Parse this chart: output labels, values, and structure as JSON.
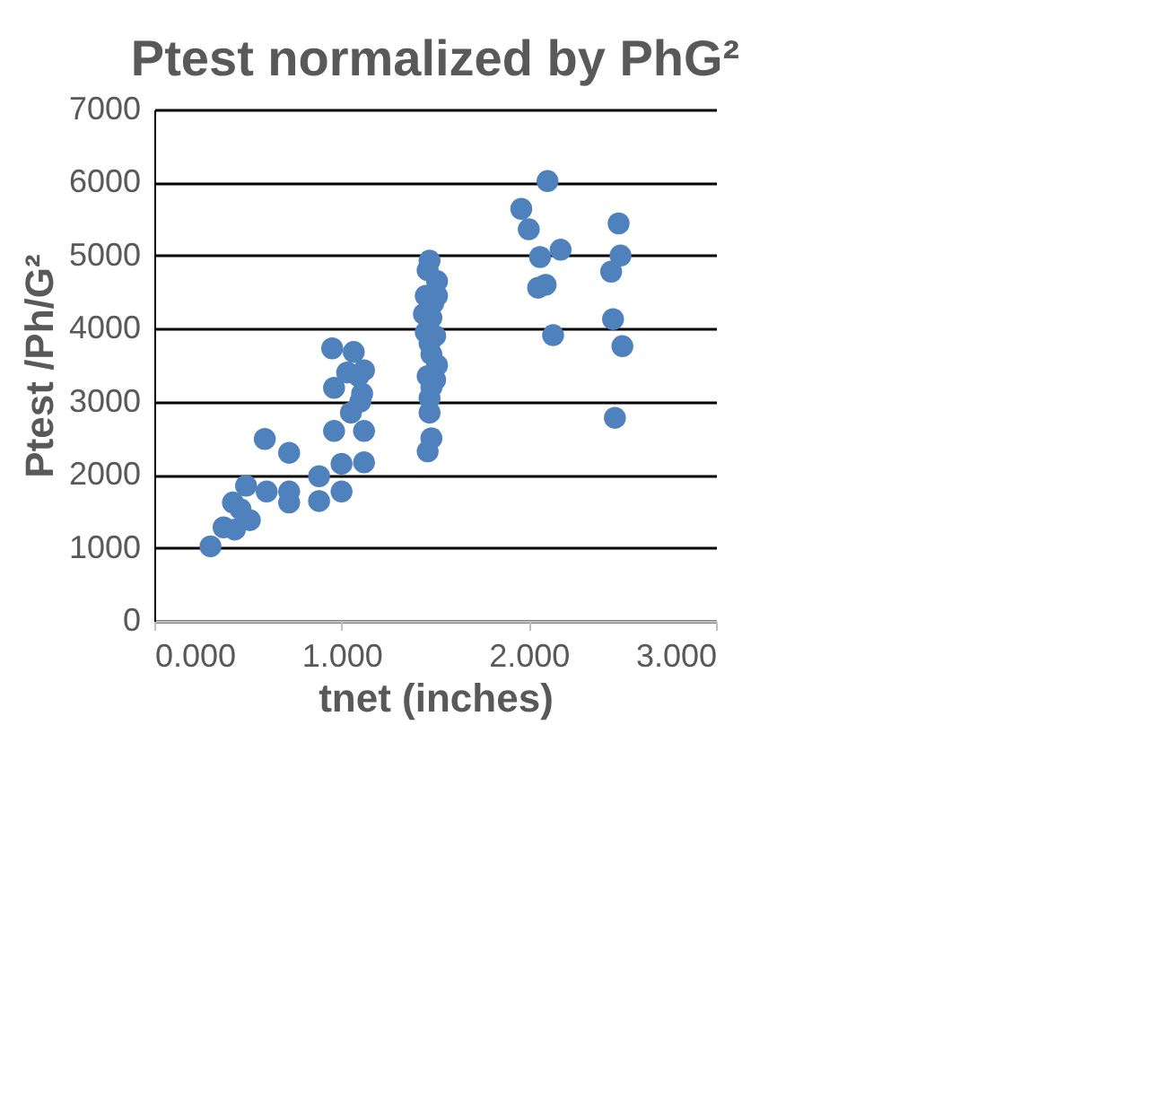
{
  "chart_data": {
    "type": "scatter",
    "title": "Ptest normalized by PhG²",
    "xlabel": "tnet (inches)",
    "ylabel": "Ptest /Ph/G²",
    "x": [
      0.3,
      0.37,
      0.43,
      0.42,
      0.46,
      0.51,
      0.49,
      0.6,
      0.59,
      0.72,
      0.72,
      0.72,
      0.88,
      0.88,
      0.95,
      0.96,
      0.96,
      1.0,
      1.0,
      1.03,
      1.05,
      1.065,
      1.09,
      1.1,
      1.11,
      1.12,
      1.12,
      1.12,
      1.47,
      1.46,
      1.51,
      1.45,
      1.51,
      1.44,
      1.48,
      1.45,
      1.5,
      1.47,
      1.48,
      1.51,
      1.46,
      1.48,
      1.47,
      1.47,
      1.48,
      1.46,
      1.49,
      1.5,
      2.1,
      1.96,
      2.0,
      2.06,
      2.17,
      2.09,
      2.05,
      2.13,
      2.48,
      2.49,
      2.44,
      2.45,
      2.5,
      2.46
    ],
    "series": [
      {
        "color": "#4f81bd",
        "values": [
          1020,
          1280,
          1250,
          1620,
          1530,
          1380,
          1850,
          1770,
          2490,
          2300,
          1770,
          1620,
          1980,
          1640,
          3730,
          3190,
          2600,
          2150,
          1770,
          3400,
          2850,
          3680,
          3350,
          3000,
          3110,
          3430,
          2600,
          2170,
          4930,
          4800,
          4650,
          4450,
          4450,
          4200,
          4150,
          3950,
          3900,
          3800,
          3650,
          3500,
          3350,
          3200,
          3050,
          2850,
          2500,
          2320,
          4350,
          3300,
          6020,
          5640,
          5360,
          4980,
          5080,
          4600,
          4560,
          3910,
          5440,
          5000,
          4780,
          4130,
          3760,
          2780
        ]
      }
    ],
    "xlim": [
      0,
      3
    ],
    "xticks": [
      {
        "value": 0,
        "label": "0.000"
      },
      {
        "value": 1,
        "label": "1.000"
      },
      {
        "value": 2,
        "label": "2.000"
      },
      {
        "value": 3,
        "label": "3.000"
      }
    ],
    "ylim": [
      0,
      7000
    ],
    "yticks": [
      0,
      1000,
      2000,
      3000,
      4000,
      5000,
      6000,
      7000
    ],
    "grid": "y",
    "marker": "circle"
  }
}
